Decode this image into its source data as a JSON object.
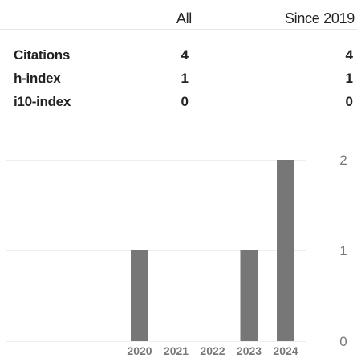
{
  "metrics": {
    "headers": {
      "all": "All",
      "since": "Since 2019"
    },
    "rows": [
      {
        "label": "Citations",
        "all": "4",
        "since": "4"
      },
      {
        "label": "h-index",
        "all": "1",
        "since": "1"
      },
      {
        "label": "i10-index",
        "all": "0",
        "since": "0"
      }
    ]
  },
  "chart_data": {
    "type": "bar",
    "categories": [
      "2020",
      "2021",
      "2022",
      "2023",
      "2024"
    ],
    "values": [
      1,
      0,
      0,
      1,
      2
    ],
    "ylim": [
      0,
      2
    ],
    "y_ticks": [
      "0",
      "1",
      "2"
    ],
    "grid": true,
    "bar_color": "#777777",
    "grid_color": "#eeeeee",
    "title": "",
    "xlabel": "",
    "ylabel": ""
  }
}
